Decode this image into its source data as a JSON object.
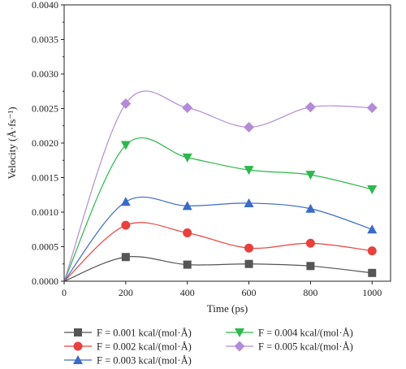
{
  "chart_data": {
    "type": "line",
    "xlabel": "Time (ps)",
    "ylabel": "Velocity (Å·fs⁻¹)",
    "x": [
      0,
      200,
      400,
      600,
      800,
      1000
    ],
    "xlim": [
      0,
      1060
    ],
    "ylim": [
      0,
      0.004
    ],
    "xticks": [
      0,
      200,
      400,
      600,
      800,
      1000
    ],
    "yticks": [
      "0.0000",
      "0.0005",
      "0.0010",
      "0.0015",
      "0.0020",
      "0.0025",
      "0.0030",
      "0.0035",
      "0.0040"
    ],
    "grid": false,
    "legend_position": "bottom",
    "series": [
      {
        "name": "F = 0.001 kcal/(mol·Å)",
        "marker": "square",
        "color": "#555555",
        "values": [
          0,
          0.00035,
          0.00024,
          0.00025,
          0.00022,
          0.00012
        ]
      },
      {
        "name": "F = 0.002 kcal/(mol·Å)",
        "marker": "circle",
        "color": "#e8413c",
        "values": [
          0,
          0.00081,
          0.0007,
          0.00048,
          0.00055,
          0.00044
        ]
      },
      {
        "name": "F = 0.003 kcal/(mol·Å)",
        "marker": "triangle-up",
        "color": "#3a6bc6",
        "values": [
          0,
          0.00115,
          0.00109,
          0.00113,
          0.00105,
          0.00075
        ]
      },
      {
        "name": "F = 0.004 kcal/(mol·Å)",
        "marker": "triangle-down",
        "color": "#2db84d",
        "values": [
          0,
          0.00197,
          0.00179,
          0.00161,
          0.00154,
          0.00133
        ]
      },
      {
        "name": "F = 0.005 kcal/(mol·Å)",
        "marker": "diamond",
        "color": "#b48bd6",
        "values": [
          0,
          0.00257,
          0.00251,
          0.00223,
          0.00252,
          0.00251
        ]
      }
    ]
  }
}
